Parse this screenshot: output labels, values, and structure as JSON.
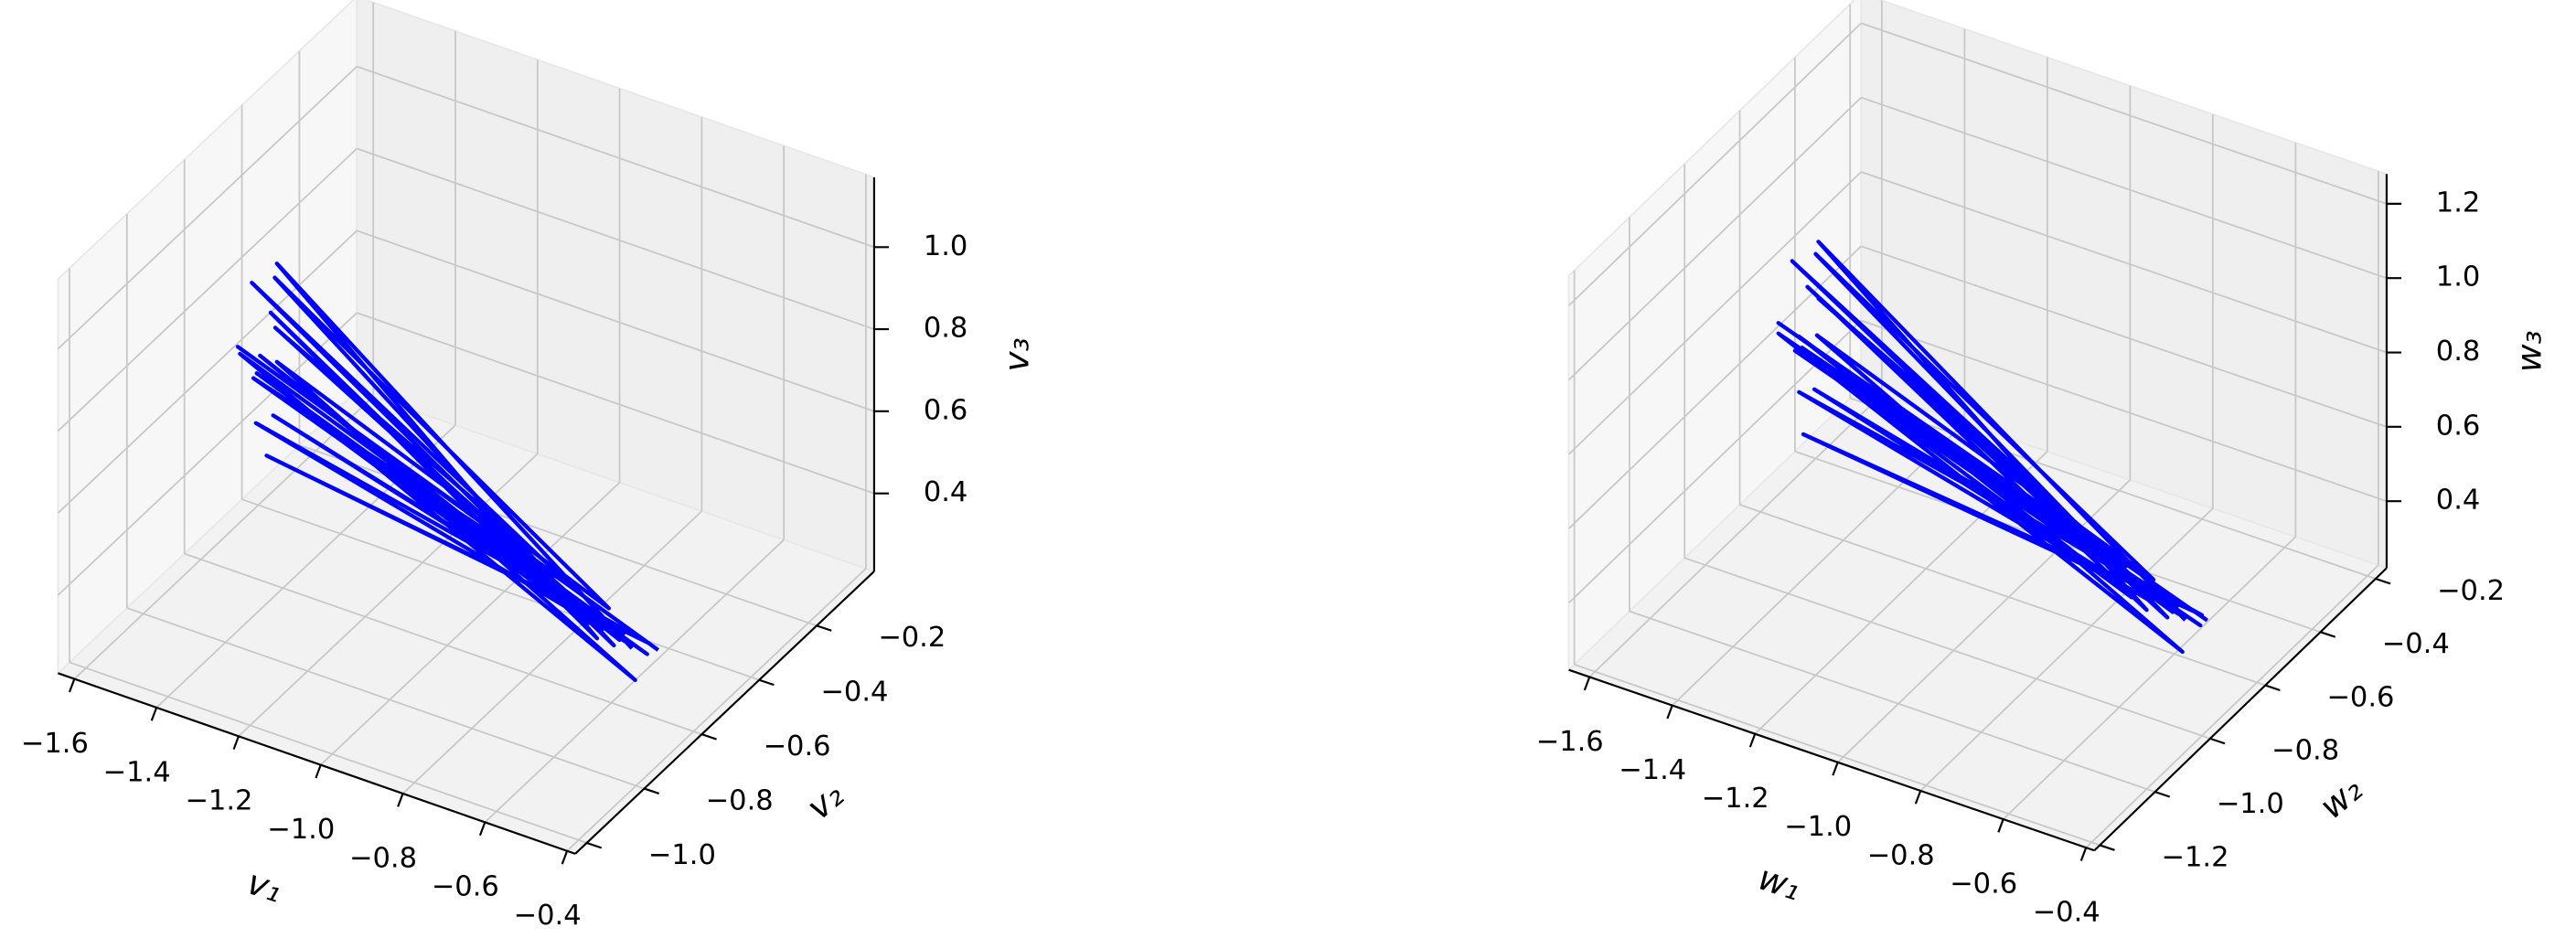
{
  "chart_data": [
    {
      "type": "line3d",
      "xlabel": "v₁",
      "ylabel": "v₂",
      "zlabel": "v₃",
      "xlim": [
        -1.64,
        -0.38
      ],
      "ylim": [
        -1.04,
        0.0
      ],
      "zlim": [
        0.21,
        1.17
      ],
      "xticks": [
        {
          "value": -1.6,
          "label": "−1.6"
        },
        {
          "value": -1.4,
          "label": "−1.4"
        },
        {
          "value": -1.2,
          "label": "−1.2"
        },
        {
          "value": -1.0,
          "label": "−1.0"
        },
        {
          "value": -0.8,
          "label": "−0.8"
        },
        {
          "value": -0.6,
          "label": "−0.6"
        },
        {
          "value": -0.4,
          "label": "−0.4"
        }
      ],
      "yticks": [
        {
          "value": -1.0,
          "label": "−1.0"
        },
        {
          "value": -0.8,
          "label": "−0.8"
        },
        {
          "value": -0.6,
          "label": "−0.6"
        },
        {
          "value": -0.4,
          "label": "−0.4"
        },
        {
          "value": -0.2,
          "label": "−0.2"
        }
      ],
      "zticks": [
        0.4,
        0.6,
        0.8,
        {
          "value": 1,
          "label": "1.0"
        }
      ],
      "grid": true,
      "series": [
        {
          "color": "#0000ff",
          "x": [
            -0.55,
            -1.45,
            -0.6,
            -1.5,
            -0.58,
            -1.35,
            -0.62,
            -1.52,
            -0.5,
            -1.4,
            -0.57,
            -1.48,
            -0.65,
            -1.3,
            -0.53,
            -1.55,
            -0.6,
            -1.42,
            -0.7,
            -1.5,
            -0.56,
            -1.38,
            -0.52,
            -1.46,
            -0.62,
            -1.33,
            -0.58,
            -1.51,
            -0.66,
            -1.44,
            -0.5
          ],
          "y": [
            -0.6,
            -0.55,
            -0.65,
            -0.5,
            -0.62,
            -0.7,
            -0.58,
            -0.45,
            -0.66,
            -0.75,
            -0.6,
            -0.52,
            -0.64,
            -0.8,
            -0.57,
            -0.48,
            -0.63,
            -0.68,
            -0.6,
            -0.56,
            -0.61,
            -0.72,
            -0.59,
            -0.5,
            -0.65,
            -0.78,
            -0.6,
            -0.47,
            -0.62,
            -0.7,
            -0.58
          ],
          "z": [
            0.36,
            0.95,
            0.4,
            0.78,
            0.37,
            1.05,
            0.42,
            0.62,
            0.34,
            0.88,
            0.39,
            0.55,
            0.45,
            0.7,
            0.36,
            0.48,
            0.41,
            1.0,
            0.46,
            0.66,
            0.38,
            0.82,
            0.35,
            0.58,
            0.43,
            0.92,
            0.37,
            0.72,
            0.47,
            0.85,
            0.36
          ]
        }
      ]
    },
    {
      "type": "line3d",
      "xlabel": "w₁",
      "ylabel": "w₂",
      "zlabel": "w₃",
      "xlim": [
        -1.65,
        -0.38
      ],
      "ylim": [
        -1.22,
        -0.16
      ],
      "zlim": [
        0.22,
        1.28
      ],
      "xticks": [
        {
          "value": -1.6,
          "label": "−1.6"
        },
        {
          "value": -1.4,
          "label": "−1.4"
        },
        {
          "value": -1.2,
          "label": "−1.2"
        },
        {
          "value": -1.0,
          "label": "−1.0"
        },
        {
          "value": -0.8,
          "label": "−0.8"
        },
        {
          "value": -0.6,
          "label": "−0.6"
        },
        {
          "value": -0.4,
          "label": "−0.4"
        }
      ],
      "yticks": [
        {
          "value": -1.2,
          "label": "−1.2"
        },
        {
          "value": -1.0,
          "label": "−1.0"
        },
        {
          "value": -0.8,
          "label": "−0.8"
        },
        {
          "value": -0.6,
          "label": "−0.6"
        },
        {
          "value": -0.4,
          "label": "−0.4"
        },
        {
          "value": -0.2,
          "label": "−0.2"
        }
      ],
      "zticks": [
        0.4,
        0.6,
        0.8,
        {
          "value": 1,
          "label": "1.0"
        },
        1.2
      ],
      "grid": true,
      "series": [
        {
          "color": "#0000ff",
          "x": [
            -0.54,
            -1.46,
            -0.6,
            -1.52,
            -0.57,
            -1.36,
            -0.63,
            -1.53,
            -0.5,
            -1.41,
            -0.56,
            -1.49,
            -0.66,
            -1.31,
            -0.52,
            -1.56,
            -0.61,
            -1.43,
            -0.71,
            -1.5,
            -0.55,
            -1.39,
            -0.51,
            -1.47,
            -0.63,
            -1.34,
            -0.57,
            -1.52,
            -0.67,
            -1.45,
            -0.5
          ],
          "y": [
            -0.65,
            -0.6,
            -0.7,
            -0.55,
            -0.67,
            -0.76,
            -0.63,
            -0.5,
            -0.72,
            -0.82,
            -0.65,
            -0.57,
            -0.7,
            -0.88,
            -0.62,
            -0.52,
            -0.68,
            -0.74,
            -0.65,
            -0.6,
            -0.66,
            -0.79,
            -0.64,
            -0.55,
            -0.71,
            -0.85,
            -0.65,
            -0.51,
            -0.67,
            -0.76,
            -0.63
          ],
          "z": [
            0.37,
            1.0,
            0.41,
            0.82,
            0.38,
            1.12,
            0.43,
            0.65,
            0.35,
            0.93,
            0.4,
            0.57,
            0.46,
            0.74,
            0.37,
            0.5,
            0.42,
            1.06,
            0.47,
            0.7,
            0.39,
            0.87,
            0.36,
            0.61,
            0.44,
            0.97,
            0.38,
            0.76,
            0.48,
            0.9,
            0.37
          ]
        }
      ]
    }
  ]
}
